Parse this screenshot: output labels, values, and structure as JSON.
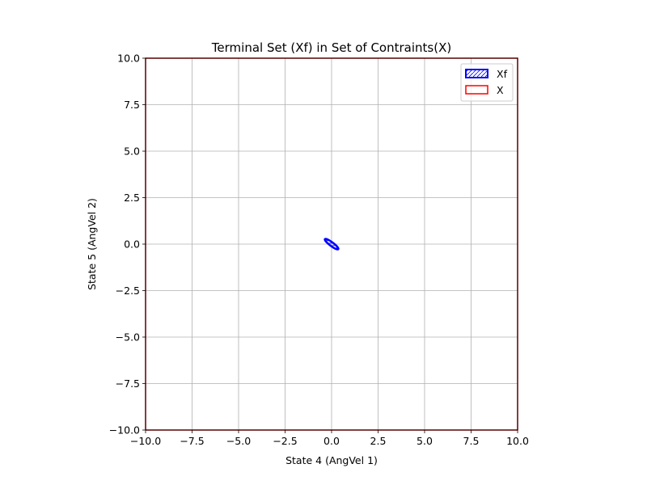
{
  "chart_data": {
    "type": "line",
    "title": "Terminal Set (Xf) in Set of Contraints(X)",
    "xlabel": "State 4 (AngVel 1)",
    "ylabel": "State 5 (AngVel 2)",
    "xlim": [
      -10,
      10
    ],
    "ylim": [
      -10,
      10
    ],
    "xticks": [
      -10,
      -7.5,
      -5,
      -2.5,
      0,
      2.5,
      5,
      7.5,
      10
    ],
    "xtick_labels": [
      "−10.0",
      "−7.5",
      "−5.0",
      "−2.5",
      "0.0",
      "2.5",
      "5.0",
      "7.5",
      "10.0"
    ],
    "yticks": [
      -10,
      -7.5,
      -5,
      -2.5,
      0,
      2.5,
      5,
      7.5,
      10
    ],
    "ytick_labels": [
      "−10.0",
      "−7.5",
      "−5.0",
      "−2.5",
      "0.0",
      "2.5",
      "5.0",
      "7.5",
      "10.0"
    ],
    "grid": true,
    "legend_position": "top-right",
    "series": [
      {
        "name": "Xf",
        "kind": "ellipse",
        "color": "#0000ff",
        "hatch": "/",
        "center": [
          0,
          0
        ],
        "semi_axes": [
          0.45,
          0.1
        ],
        "angle_deg": -37
      },
      {
        "name": "X",
        "kind": "box",
        "color": "#ff0000",
        "x": [
          -10,
          10,
          10,
          -10,
          -10
        ],
        "y": [
          -10,
          -10,
          10,
          10,
          -10
        ]
      }
    ]
  }
}
